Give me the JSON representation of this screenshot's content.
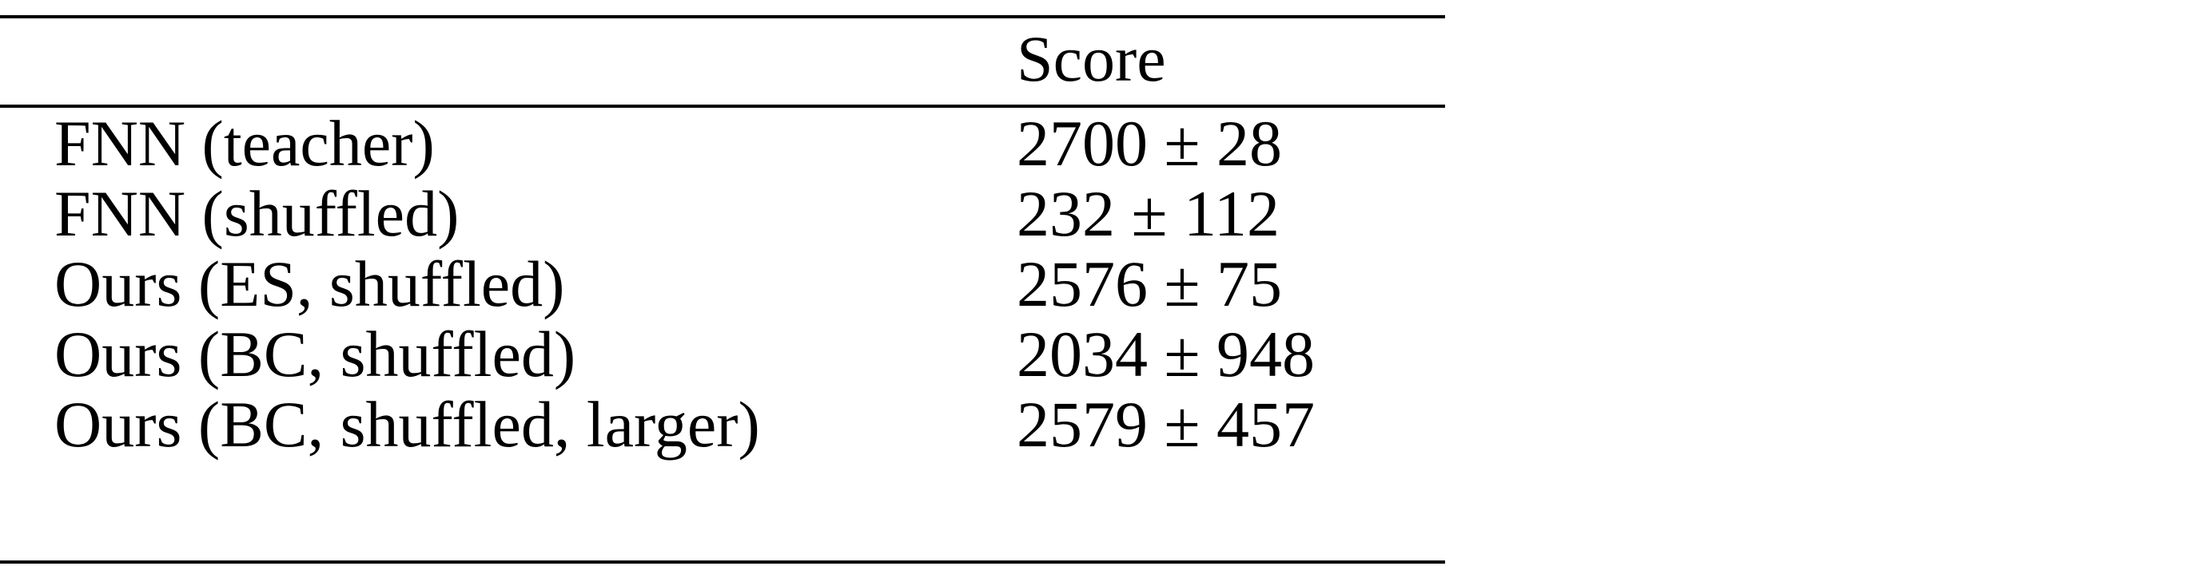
{
  "table": {
    "header": [
      "",
      "Score"
    ],
    "rows": [
      {
        "method": "FNN (teacher)",
        "score": "2700 ± 28"
      },
      {
        "method": "FNN (shuffled)",
        "score": "232 ± 112"
      },
      {
        "method": "Ours (ES, shuffled)",
        "score": "2576 ± 75"
      },
      {
        "method": "Ours (BC, shuffled)",
        "score": "2034 ± 948"
      },
      {
        "method": "Ours (BC, shuffled, larger)",
        "score": "2579 ± 457"
      }
    ]
  }
}
